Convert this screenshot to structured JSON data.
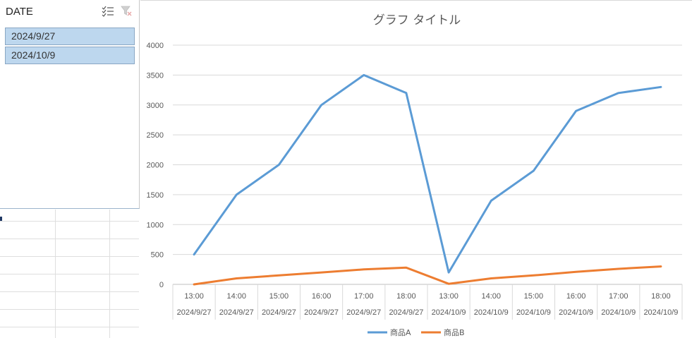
{
  "slicer": {
    "title": "DATE",
    "items": [
      {
        "label": "2024/9/27",
        "selected": true
      },
      {
        "label": "2024/10/9",
        "selected": true
      }
    ],
    "multiselect_icon": "multi-select-icon",
    "clear_icon": "clear-filter-icon",
    "selected_color": "#bdd7ee"
  },
  "chart_data": {
    "type": "line",
    "title": "グラフ タイトル",
    "x": [
      {
        "time": "13:00",
        "date": "2024/9/27"
      },
      {
        "time": "14:00",
        "date": "2024/9/27"
      },
      {
        "time": "15:00",
        "date": "2024/9/27"
      },
      {
        "time": "16:00",
        "date": "2024/9/27"
      },
      {
        "time": "17:00",
        "date": "2024/9/27"
      },
      {
        "time": "18:00",
        "date": "2024/9/27"
      },
      {
        "time": "13:00",
        "date": "2024/10/9"
      },
      {
        "time": "14:00",
        "date": "2024/10/9"
      },
      {
        "time": "15:00",
        "date": "2024/10/9"
      },
      {
        "time": "16:00",
        "date": "2024/10/9"
      },
      {
        "time": "17:00",
        "date": "2024/10/9"
      },
      {
        "time": "18:00",
        "date": "2024/10/9"
      }
    ],
    "series": [
      {
        "name": "商品A",
        "color": "#5b9bd5",
        "values": [
          500,
          1500,
          2000,
          3000,
          3500,
          3200,
          200,
          1400,
          1900,
          2900,
          3200,
          3300
        ]
      },
      {
        "name": "商品B",
        "color": "#ed7d31",
        "values": [
          0,
          100,
          150,
          200,
          250,
          280,
          10,
          100,
          150,
          210,
          260,
          300
        ]
      }
    ],
    "ylim": [
      0,
      4000
    ],
    "yticks": [
      0,
      500,
      1000,
      1500,
      2000,
      2500,
      3000,
      3500,
      4000
    ],
    "grid": true,
    "legend": "bottom"
  }
}
